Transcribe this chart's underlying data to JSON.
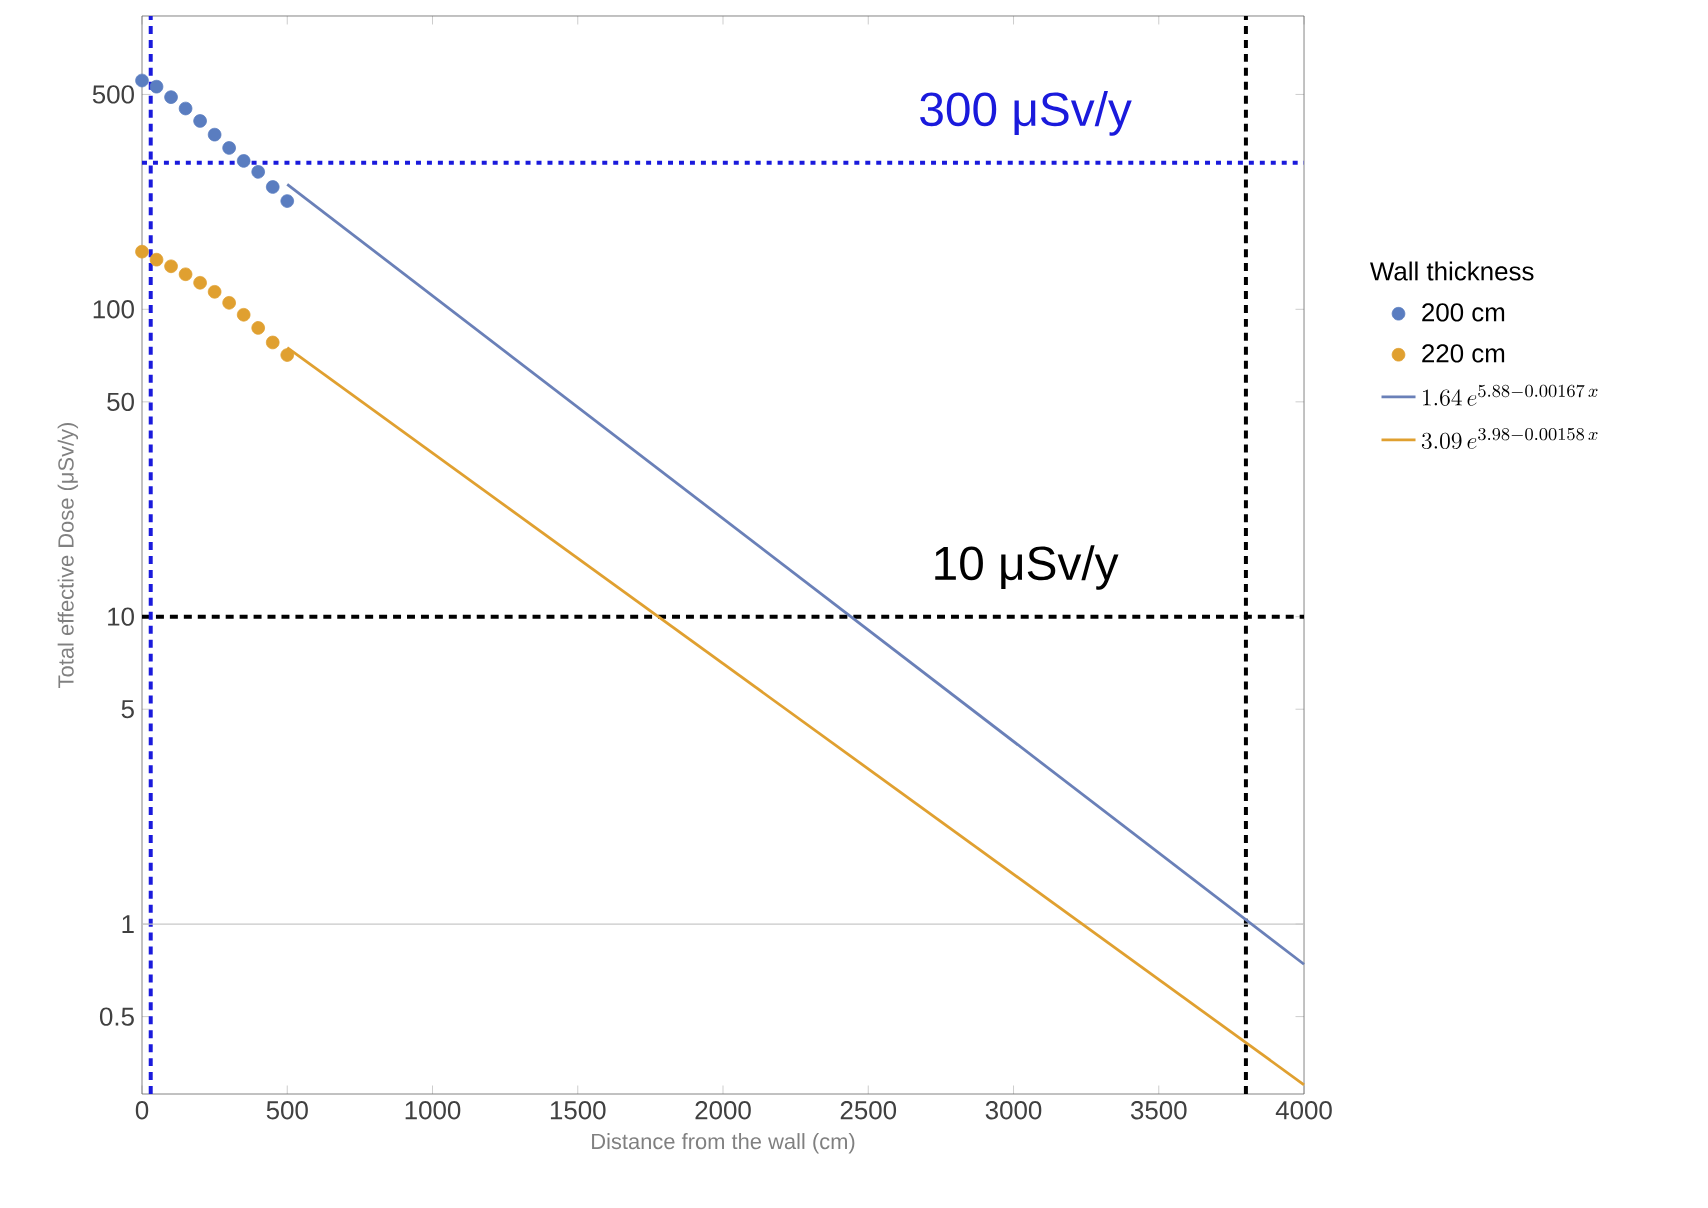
{
  "chart_data": {
    "type": "scatter",
    "xlabel": "Distance from the wall (cm)",
    "ylabel": "Total effective Dose (μSv/y)",
    "legend_title": "Wall thickness",
    "legend": "right",
    "log": "y",
    "xlim": [
      0,
      4000
    ],
    "xticks": [
      0,
      500,
      1000,
      1500,
      2000,
      2500,
      3000,
      3500,
      4000
    ],
    "ylim": [
      0.28,
      900
    ],
    "yticks": [
      0.5,
      1,
      5,
      10,
      50,
      100,
      500
    ],
    "series": [
      {
        "name": "200 cm",
        "marker": "circle",
        "color": "#5a7dc0",
        "x": [
          0,
          50,
          100,
          150,
          200,
          250,
          300,
          350,
          400,
          450,
          500
        ],
        "values": [
          555,
          530,
          490,
          450,
          410,
          370,
          335,
          304,
          280,
          250,
          225
        ]
      },
      {
        "name": "220 cm",
        "marker": "circle",
        "color": "#e0a030",
        "x": [
          0,
          50,
          100,
          150,
          200,
          250,
          300,
          350,
          400,
          450,
          500
        ],
        "values": [
          154,
          145,
          138,
          130,
          122,
          114,
          105,
          96,
          87,
          78,
          71
        ]
      },
      {
        "name": "1.64\\,e^{5.88-0.00167\\,x}",
        "type": "line",
        "marker": "none",
        "line_style": "solid",
        "color": "#6a80b8",
        "x": [
          500,
          4000
        ],
        "values": [
          255,
          0.74
        ]
      },
      {
        "name": "3.09\\,e^{3.98-0.00158\\,x}",
        "type": "line",
        "marker": "none",
        "line_style": "solid",
        "color": "#e0a030",
        "x": [
          500,
          4000
        ],
        "values": [
          75,
          0.3
        ]
      }
    ],
    "ref_lines": [
      {
        "axis": "y",
        "value": 300,
        "label": "300 μSv/y",
        "color": "#1a1adc",
        "line_style": "dotted"
      },
      {
        "axis": "y",
        "value": 10,
        "label": "10 μSv/y",
        "color": "#000000",
        "line_style": "dashed"
      },
      {
        "axis": "x",
        "value": 3800,
        "color": "#000000",
        "line_style": "dashed"
      },
      {
        "axis": "x",
        "value": 30,
        "color": "#1a1adc",
        "line_style": "dashed"
      },
      {
        "axis": "y",
        "value": 1,
        "color": "#c8c8c8",
        "line_style": "solid"
      }
    ]
  }
}
